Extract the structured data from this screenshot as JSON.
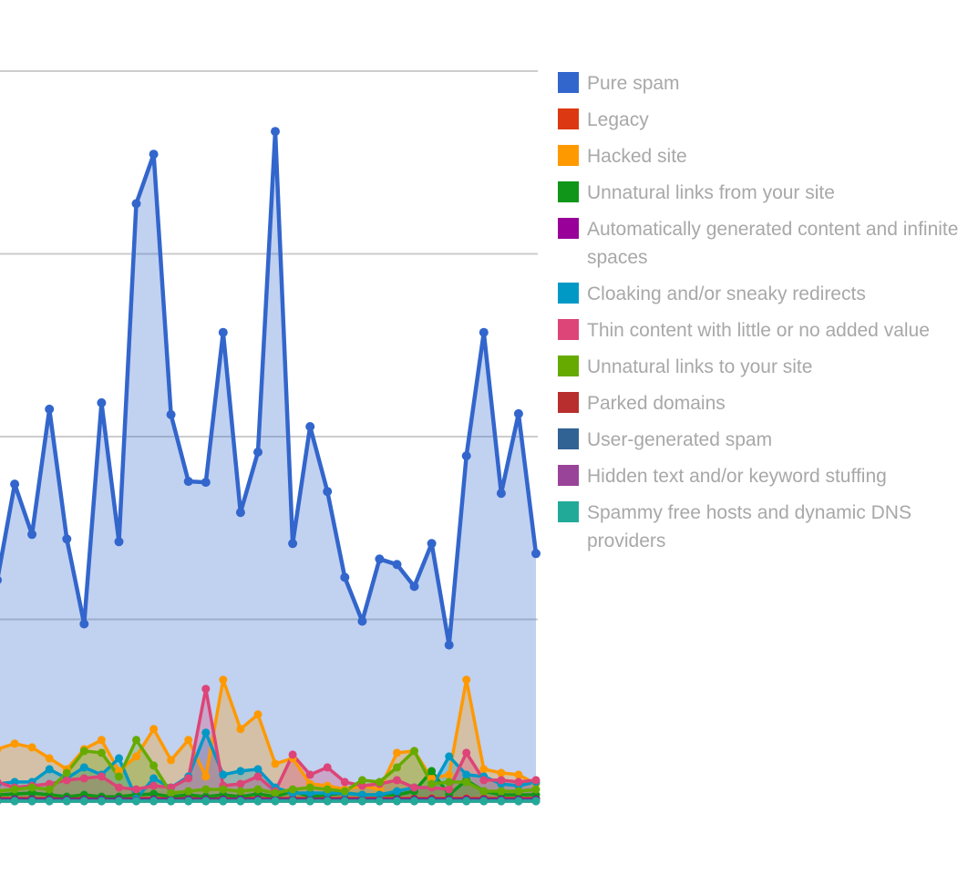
{
  "chart_data": {
    "type": "area",
    "title": "",
    "xlabel": "",
    "ylabel": "",
    "ylim": [
      0,
      800
    ],
    "gridlines": [
      200,
      400,
      600,
      800
    ],
    "grid": true,
    "legend_position": "right",
    "x": [
      0,
      1,
      2,
      3,
      4,
      5,
      6,
      7,
      8,
      9,
      10,
      11,
      12,
      13,
      14,
      15,
      16,
      17,
      18,
      19,
      20,
      21,
      22,
      23,
      24,
      25,
      26,
      27,
      28,
      29,
      30,
      31
    ],
    "series": [
      {
        "name": "Pure spam",
        "color": "#3366cc",
        "values": [
          243,
          348,
          293,
          430,
          288,
          195,
          437,
          285,
          655,
          709,
          424,
          351,
          350,
          514,
          317,
          383,
          734,
          283,
          411,
          340,
          246,
          198,
          266,
          260,
          236,
          283,
          172,
          379,
          514,
          338,
          425,
          272
        ]
      },
      {
        "name": "Legacy",
        "color": "#dc3912",
        "values": [
          4,
          4,
          4,
          4,
          4,
          4,
          4,
          4,
          4,
          4,
          4,
          4,
          4,
          4,
          4,
          4,
          4,
          4,
          4,
          4,
          4,
          4,
          4,
          4,
          4,
          4,
          4,
          4,
          4,
          4,
          4,
          4
        ]
      },
      {
        "name": "Hacked site",
        "color": "#ff9900",
        "values": [
          58,
          64,
          60,
          48,
          36,
          58,
          68,
          34,
          50,
          80,
          46,
          68,
          28,
          134,
          80,
          96,
          42,
          48,
          20,
          18,
          14,
          18,
          14,
          54,
          56,
          26,
          30,
          134,
          36,
          32,
          30,
          20
        ]
      },
      {
        "name": "Unnatural links from your site",
        "color": "#109618",
        "values": [
          8,
          9,
          10,
          8,
          6,
          8,
          6,
          6,
          8,
          9,
          6,
          8,
          6,
          8,
          6,
          9,
          6,
          12,
          6,
          8,
          10,
          8,
          8,
          8,
          12,
          34,
          8,
          24,
          12,
          8,
          8,
          8
        ]
      },
      {
        "name": "Automatically generated content and infinite spaces",
        "color": "#990099",
        "values": [
          3,
          3,
          3,
          3,
          3,
          3,
          3,
          3,
          3,
          3,
          3,
          3,
          3,
          3,
          3,
          3,
          3,
          3,
          3,
          3,
          3,
          3,
          3,
          3,
          3,
          3,
          3,
          3,
          3,
          3,
          3,
          3
        ]
      },
      {
        "name": "Cloaking and/or sneaky redirects",
        "color": "#0099c6",
        "values": [
          20,
          22,
          22,
          36,
          26,
          38,
          30,
          48,
          4,
          26,
          16,
          28,
          76,
          30,
          34,
          36,
          16,
          10,
          10,
          10,
          10,
          8,
          8,
          12,
          16,
          16,
          50,
          30,
          28,
          20,
          18,
          22
        ]
      },
      {
        "name": "Thin content with little or no added value",
        "color": "#dd4477",
        "values": [
          22,
          16,
          18,
          20,
          24,
          26,
          28,
          16,
          14,
          18,
          16,
          26,
          124,
          18,
          20,
          28,
          12,
          52,
          30,
          38,
          22,
          18,
          20,
          24,
          16,
          16,
          14,
          54,
          24,
          24,
          22,
          24
        ]
      },
      {
        "name": "Unnatural links to your site",
        "color": "#66aa00",
        "values": [
          12,
          14,
          16,
          14,
          32,
          56,
          54,
          28,
          68,
          40,
          10,
          12,
          14,
          14,
          12,
          14,
          10,
          14,
          16,
          14,
          12,
          24,
          22,
          38,
          56,
          20,
          22,
          22,
          12,
          12,
          12,
          14
        ]
      },
      {
        "name": "Parked domains",
        "color": "#b82e2e",
        "values": [
          2,
          2,
          2,
          2,
          2,
          2,
          2,
          2,
          2,
          2,
          2,
          2,
          2,
          2,
          2,
          2,
          2,
          2,
          2,
          2,
          2,
          2,
          2,
          2,
          2,
          2,
          2,
          2,
          2,
          2,
          2,
          2
        ]
      },
      {
        "name": "User-generated spam",
        "color": "#316395",
        "values": [
          2,
          2,
          2,
          2,
          2,
          2,
          2,
          2,
          2,
          2,
          2,
          2,
          2,
          2,
          2,
          2,
          2,
          2,
          2,
          2,
          2,
          2,
          2,
          2,
          2,
          2,
          2,
          2,
          2,
          2,
          2,
          2
        ]
      },
      {
        "name": "Hidden text and/or keyword stuffing",
        "color": "#994499",
        "values": [
          1,
          1,
          1,
          1,
          1,
          1,
          1,
          1,
          1,
          1,
          1,
          1,
          1,
          1,
          1,
          1,
          1,
          1,
          1,
          1,
          1,
          1,
          1,
          1,
          1,
          1,
          1,
          1,
          1,
          1,
          1,
          1
        ]
      },
      {
        "name": "Spammy free hosts and dynamic DNS providers",
        "color": "#22aa99",
        "values": [
          1,
          1,
          1,
          1,
          1,
          1,
          1,
          1,
          1,
          1,
          1,
          1,
          1,
          1,
          1,
          1,
          1,
          1,
          1,
          1,
          1,
          1,
          1,
          1,
          1,
          1,
          1,
          1,
          1,
          1,
          1,
          1
        ]
      }
    ]
  }
}
